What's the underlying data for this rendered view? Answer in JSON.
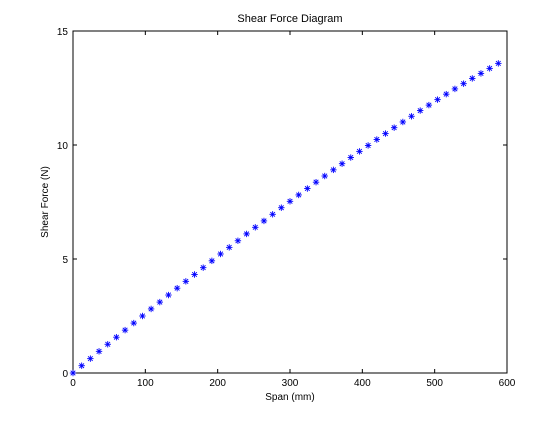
{
  "chart_data": {
    "type": "scatter",
    "title": "Shear Force Diagram",
    "xlabel": "Span (mm)",
    "ylabel": "Shear Force (N)",
    "xlim": [
      0,
      600
    ],
    "ylim": [
      0,
      15
    ],
    "xticks": [
      0,
      100,
      200,
      300,
      400,
      500,
      600
    ],
    "yticks": [
      0,
      5,
      10,
      15
    ],
    "grid": false,
    "marker": "*",
    "colors": {
      "marker": "#0000ff",
      "axes": "#000000",
      "background": "#ffffff"
    },
    "series": [
      {
        "x": [
          0,
          12,
          24,
          36,
          48,
          60,
          72,
          84,
          96,
          108,
          120,
          132,
          144,
          156,
          168,
          180,
          192,
          204,
          216,
          228,
          240,
          252,
          264,
          276,
          288,
          300,
          312,
          324,
          336,
          348,
          360,
          372,
          384,
          396,
          408,
          420,
          432,
          444,
          456,
          468,
          480,
          492,
          504,
          516,
          528,
          540,
          552,
          564,
          576,
          588
        ],
        "y": [
          0.0,
          0.32,
          0.63,
          0.95,
          1.26,
          1.57,
          1.88,
          2.19,
          2.5,
          2.81,
          3.11,
          3.42,
          3.72,
          4.02,
          4.32,
          4.62,
          4.92,
          5.22,
          5.51,
          5.8,
          6.1,
          6.39,
          6.67,
          6.96,
          7.25,
          7.53,
          7.81,
          8.09,
          8.37,
          8.64,
          8.91,
          9.18,
          9.45,
          9.72,
          9.98,
          10.24,
          10.5,
          10.76,
          11.01,
          11.26,
          11.51,
          11.75,
          11.99,
          12.23,
          12.46,
          12.69,
          12.92,
          13.14,
          13.36,
          13.58
        ]
      }
    ]
  }
}
